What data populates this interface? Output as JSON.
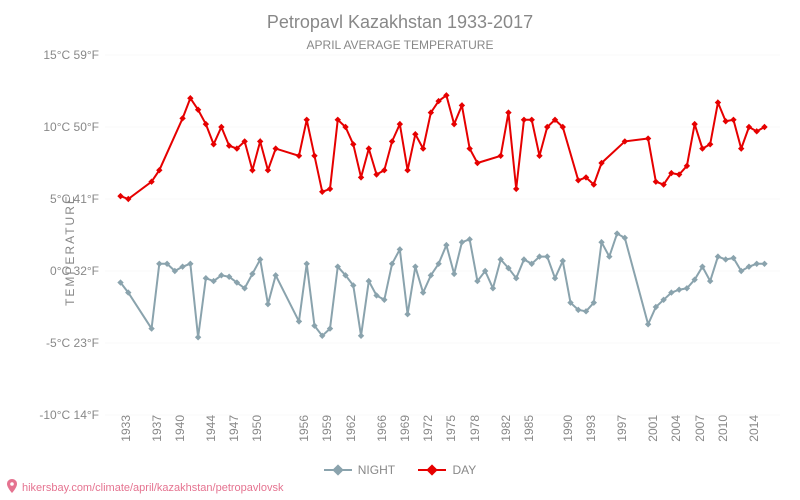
{
  "title": "Petropavl Kazakhstan 1933-2017",
  "subtitle": "APRIL AVERAGE TEMPERATURE",
  "ylabel": "TEMPERATURE",
  "title_fontsize": 18,
  "subtitle_fontsize": 12,
  "ylabel_fontsize": 12,
  "tick_fontsize": 12,
  "legend_fontsize": 12,
  "attribution_fontsize": 11,
  "background_color": "#ffffff",
  "grid_color": "#e2e2e2",
  "text_color": "#888888",
  "attribution_color": "#e57390",
  "attribution_text": "hikersbay.com/climate/april/kazakhstan/petropavlovsk",
  "pin_icon_name": "map-pin-icon",
  "xlim": [
    1931,
    2018
  ],
  "ylim": [
    -10,
    15
  ],
  "ytick_step": 5,
  "yticks": [
    {
      "c": -10,
      "f": 14
    },
    {
      "c": -5,
      "f": 23
    },
    {
      "c": 0,
      "f": 32
    },
    {
      "c": 5,
      "f": 41
    },
    {
      "c": 10,
      "f": 50
    },
    {
      "c": 15,
      "f": 59
    }
  ],
  "xticks": [
    1933,
    1937,
    1940,
    1944,
    1947,
    1950,
    1956,
    1959,
    1962,
    1966,
    1969,
    1972,
    1975,
    1978,
    1982,
    1985,
    1990,
    1993,
    1997,
    2001,
    2004,
    2007,
    2010,
    2014
  ],
  "marker_size": 3.2,
  "line_width": 2,
  "legend": {
    "night": "NIGHT",
    "day": "DAY"
  },
  "series": {
    "night": {
      "color": "#8aa3ad",
      "x": [
        1933,
        1934,
        1937,
        1938,
        1939,
        1940,
        1941,
        1942,
        1943,
        1944,
        1945,
        1946,
        1947,
        1948,
        1949,
        1950,
        1951,
        1952,
        1953,
        1956,
        1957,
        1958,
        1959,
        1960,
        1961,
        1962,
        1963,
        1964,
        1965,
        1966,
        1967,
        1968,
        1969,
        1970,
        1971,
        1972,
        1973,
        1974,
        1975,
        1976,
        1977,
        1978,
        1979,
        1980,
        1981,
        1982,
        1983,
        1984,
        1985,
        1986,
        1987,
        1988,
        1989,
        1990,
        1991,
        1992,
        1993,
        1994,
        1995,
        1996,
        1997,
        1998,
        2001,
        2002,
        2003,
        2004,
        2005,
        2006,
        2007,
        2008,
        2009,
        2010,
        2011,
        2012,
        2013,
        2014,
        2015,
        2016
      ],
      "y": [
        -0.8,
        -1.5,
        -4.0,
        0.5,
        0.5,
        0.0,
        0.3,
        0.5,
        -4.6,
        -0.5,
        -0.7,
        -0.3,
        -0.4,
        -0.8,
        -1.2,
        -0.2,
        0.8,
        -2.3,
        -0.3,
        -3.5,
        0.5,
        -3.8,
        -4.5,
        -4.0,
        0.3,
        -0.3,
        -1.0,
        -4.5,
        -0.7,
        -1.7,
        -2.0,
        0.5,
        1.5,
        -3.0,
        0.3,
        -1.5,
        -0.3,
        0.5,
        1.8,
        -0.2,
        2.0,
        2.2,
        -0.7,
        0.0,
        -1.2,
        0.8,
        0.2,
        -0.5,
        0.8,
        0.5,
        1.0,
        1.0,
        -0.5,
        0.7,
        -2.2,
        -2.7,
        -2.8,
        -2.2,
        2.0,
        1.0,
        2.6,
        2.3,
        -3.7,
        -2.5,
        -2.0,
        -1.5,
        -1.3,
        -1.2,
        -0.6,
        0.3,
        -0.7,
        1.0,
        0.8,
        0.9,
        0.0,
        0.3,
        0.5,
        0.5
      ]
    },
    "day": {
      "color": "#e60000",
      "x": [
        1933,
        1934,
        1937,
        1938,
        1941,
        1942,
        1943,
        1944,
        1945,
        1946,
        1947,
        1948,
        1949,
        1950,
        1951,
        1952,
        1953,
        1956,
        1957,
        1958,
        1959,
        1960,
        1961,
        1962,
        1963,
        1964,
        1965,
        1966,
        1967,
        1968,
        1969,
        1970,
        1971,
        1972,
        1973,
        1974,
        1975,
        1976,
        1977,
        1978,
        1979,
        1982,
        1983,
        1984,
        1985,
        1986,
        1987,
        1988,
        1989,
        1990,
        1992,
        1993,
        1994,
        1995,
        1998,
        2001,
        2002,
        2003,
        2004,
        2005,
        2006,
        2007,
        2008,
        2009,
        2010,
        2011,
        2012,
        2013,
        2014,
        2015,
        2016
      ],
      "y": [
        5.2,
        5.0,
        6.2,
        7.0,
        10.6,
        12.0,
        11.2,
        10.2,
        8.8,
        10.0,
        8.7,
        8.5,
        9.0,
        7.0,
        9.0,
        7.0,
        8.5,
        8.0,
        10.5,
        8.0,
        5.5,
        5.7,
        10.5,
        10.0,
        8.8,
        6.5,
        8.5,
        6.7,
        7.0,
        9.0,
        10.2,
        7.0,
        9.5,
        8.5,
        11.0,
        11.8,
        12.2,
        10.2,
        11.5,
        8.5,
        7.5,
        8.0,
        11.0,
        5.7,
        10.5,
        10.5,
        8.0,
        10.0,
        10.5,
        10.0,
        6.3,
        6.5,
        6.0,
        7.5,
        9.0,
        9.2,
        6.2,
        6.0,
        6.8,
        6.7,
        7.3,
        10.2,
        8.5,
        8.8,
        11.7,
        10.4,
        10.5,
        8.5,
        10.0,
        9.7,
        10.0
      ]
    }
  }
}
